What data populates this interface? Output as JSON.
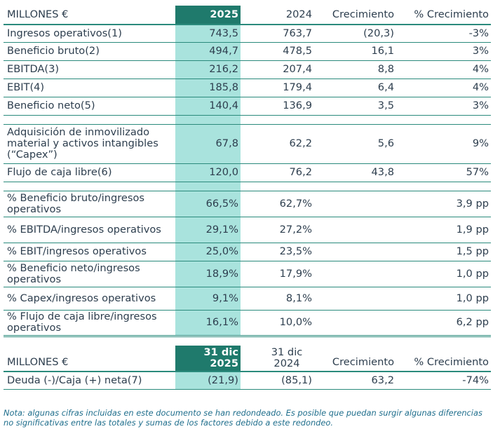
{
  "table1": {
    "header": {
      "label": "MILLONES €",
      "y2025": "2025",
      "y2024": "2024",
      "growth": "Crecimiento",
      "pct_growth": "% Crecimiento"
    },
    "group1": [
      {
        "label": "Ingresos operativos(1)",
        "y2025": "743,5",
        "y2024": "763,7",
        "growth": "(20,3)",
        "pct": "-3%"
      },
      {
        "label": "Beneficio bruto(2)",
        "y2025": "494,7",
        "y2024": "478,5",
        "growth": "16,1",
        "pct": "3%"
      },
      {
        "label": "EBITDA(3)",
        "y2025": "216,2",
        "y2024": "207,4",
        "growth": "8,8",
        "pct": "4%"
      },
      {
        "label": "EBIT(4)",
        "y2025": "185,8",
        "y2024": "179,4",
        "growth": "6,4",
        "pct": "4%"
      },
      {
        "label": "Beneficio neto(5)",
        "y2025": "140,4",
        "y2024": "136,9",
        "growth": "3,5",
        "pct": "3%"
      }
    ],
    "group2": [
      {
        "label": "Adquisición de inmovilizado material y activos intangibles (“Capex”)",
        "y2025": "67,8",
        "y2024": "62,2",
        "growth": "5,6",
        "pct": "9%"
      },
      {
        "label": "Flujo de caja libre(6)",
        "y2025": "120,0",
        "y2024": "76,2",
        "growth": "43,8",
        "pct": "57%"
      }
    ],
    "group3": [
      {
        "label": "% Beneficio bruto/ingresos operativos",
        "y2025": "66,5%",
        "y2024": "62,7%",
        "pct": "3,9 pp"
      },
      {
        "label": "% EBITDA/ingresos operativos",
        "y2025": "29,1%",
        "y2024": "27,2%",
        "pct": "1,9 pp"
      },
      {
        "label": "% EBIT/ingresos operativos",
        "y2025": "25,0%",
        "y2024": "23,5%",
        "pct": "1,5 pp"
      },
      {
        "label": "% Beneficio neto/ingresos operativos",
        "y2025": "18,9%",
        "y2024": "17,9%",
        "pct": "1,0 pp"
      },
      {
        "label": "% Capex/ingresos operativos",
        "y2025": "9,1%",
        "y2024": "8,1%",
        "pct": "1,0 pp"
      },
      {
        "label": "% Flujo de caja libre/ingresos operativos",
        "y2025": "16,1%",
        "y2024": "10,0%",
        "pct": "6,2 pp"
      }
    ]
  },
  "table2": {
    "header": {
      "label": "MILLONES €",
      "y2025_l1": "31 dic",
      "y2025_l2": "2025",
      "y2024_l1": "31 dic",
      "y2024_l2": "2024",
      "growth": "Crecimiento",
      "pct_growth": "% Crecimiento"
    },
    "row": {
      "label": "Deuda (-)/Caja (+) neta(7)",
      "y2025": "(21,9)",
      "y2024": "(85,1)",
      "growth": "63,2",
      "pct": "-74%"
    }
  },
  "note": "Nota: algunas cifras incluidas en este documento se han redondeado. Es posible que puedan surgir algunas diferencias no significativas entre las totales y sumas de los factores debido a este redondeo."
}
